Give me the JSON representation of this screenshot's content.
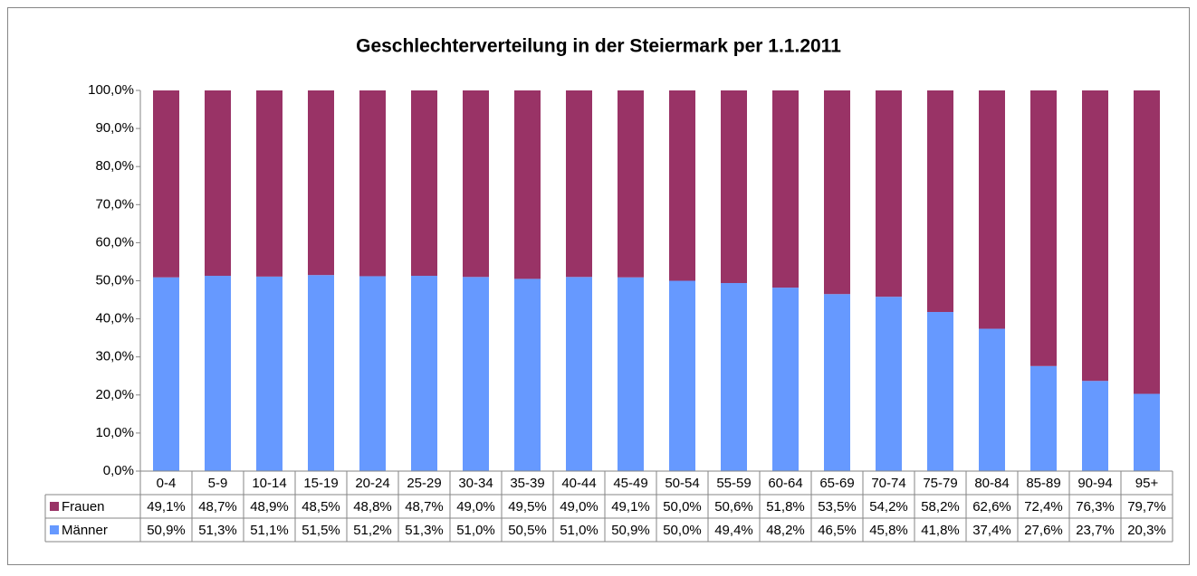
{
  "chart_data": {
    "type": "stacked_bar_100",
    "title": "Geschlechterverteilung in der Steiermark per 1.1.2011",
    "categories": [
      "0-4",
      "5-9",
      "10-14",
      "15-19",
      "20-24",
      "25-29",
      "30-34",
      "35-39",
      "40-44",
      "45-49",
      "50-54",
      "55-59",
      "60-64",
      "65-69",
      "70-74",
      "75-79",
      "80-84",
      "85-89",
      "90-94",
      "95+"
    ],
    "series": [
      {
        "name": "Frauen",
        "color": "#993366",
        "values": [
          49.1,
          48.7,
          48.9,
          48.5,
          48.8,
          48.7,
          49.0,
          49.5,
          49.0,
          49.1,
          50.0,
          50.6,
          51.8,
          53.5,
          54.2,
          58.2,
          62.6,
          72.4,
          76.3,
          79.7
        ],
        "value_labels": [
          "49,1%",
          "48,7%",
          "48,9%",
          "48,5%",
          "48,8%",
          "48,7%",
          "49,0%",
          "49,5%",
          "49,0%",
          "49,1%",
          "50,0%",
          "50,6%",
          "51,8%",
          "53,5%",
          "54,2%",
          "58,2%",
          "62,6%",
          "72,4%",
          "76,3%",
          "79,7%"
        ]
      },
      {
        "name": "Männer",
        "color": "#6699FF",
        "values": [
          50.9,
          51.3,
          51.1,
          51.5,
          51.2,
          51.3,
          51.0,
          50.5,
          51.0,
          50.9,
          50.0,
          49.4,
          48.2,
          46.5,
          45.8,
          41.8,
          37.4,
          27.6,
          23.7,
          20.3
        ],
        "value_labels": [
          "50,9%",
          "51,3%",
          "51,1%",
          "51,5%",
          "51,2%",
          "51,3%",
          "51,0%",
          "50,5%",
          "51,0%",
          "50,9%",
          "50,0%",
          "49,4%",
          "48,2%",
          "46,5%",
          "45,8%",
          "41,8%",
          "37,4%",
          "27,6%",
          "23,7%",
          "20,3%"
        ]
      }
    ],
    "ylim": [
      0,
      100
    ],
    "yticks": [
      {
        "value": 0,
        "label": "0,0%"
      },
      {
        "value": 10,
        "label": "10,0%"
      },
      {
        "value": 20,
        "label": "20,0%"
      },
      {
        "value": 30,
        "label": "30,0%"
      },
      {
        "value": 40,
        "label": "40,0%"
      },
      {
        "value": 50,
        "label": "50,0%"
      },
      {
        "value": 60,
        "label": "60,0%"
      },
      {
        "value": 70,
        "label": "70,0%"
      },
      {
        "value": 80,
        "label": "80,0%"
      },
      {
        "value": 90,
        "label": "90,0%"
      },
      {
        "value": 100,
        "label": "100,0%"
      }
    ],
    "grid": false,
    "data_table": true
  }
}
